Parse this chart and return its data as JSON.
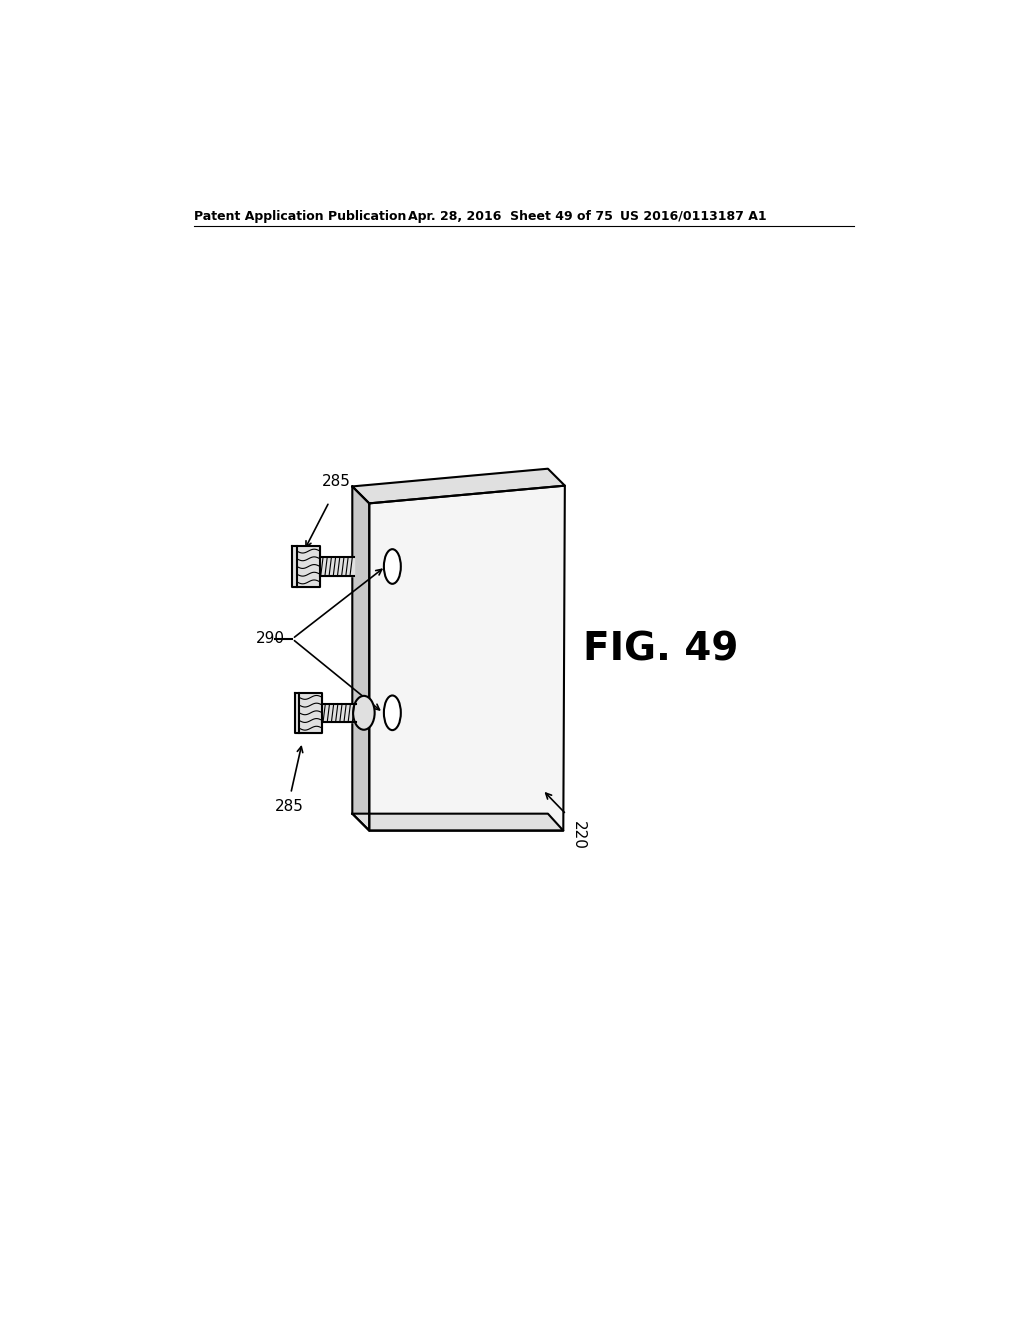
{
  "bg_color": "#ffffff",
  "header_left": "Patent Application Publication",
  "header_mid": "Apr. 28, 2016  Sheet 49 of 75",
  "header_right": "US 2016/0113187 A1",
  "fig_label": "FIG. 49",
  "label_285_top": "285",
  "label_285_bot": "285",
  "label_290": "290",
  "label_220": "220",
  "line_color": "#000000",
  "fill_light": "#f5f5f5",
  "fill_mid": "#e0e0e0",
  "fill_dark": "#c8c8c8",
  "fill_white": "#ffffff"
}
